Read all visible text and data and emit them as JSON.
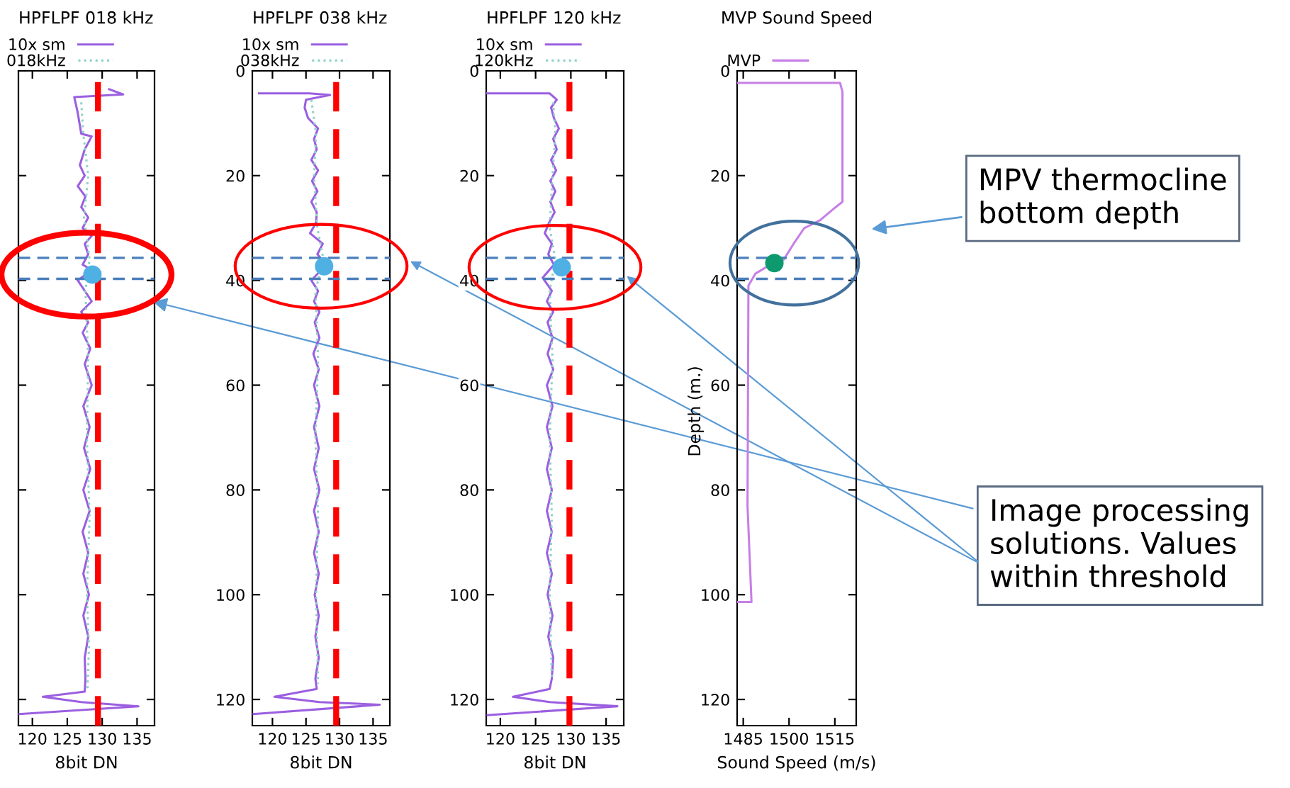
{
  "chart_data": [
    {
      "type": "line",
      "title": "HPFLPF 018 kHz",
      "xlabel": "8bit DN",
      "xlim": [
        118,
        137.5
      ],
      "xticks": [
        120,
        125,
        130,
        135
      ],
      "ylim": [
        125,
        0
      ],
      "yticks": [
        {
          "value": 0,
          "label": null
        },
        {
          "value": 20,
          "label": null
        },
        {
          "value": 40,
          "label": null
        },
        {
          "value": 60,
          "label": null
        },
        {
          "value": 80,
          "label": null
        },
        {
          "value": 100,
          "label": null
        },
        {
          "value": 120,
          "label": null
        }
      ],
      "tick_labels": "x",
      "legend": "top",
      "grid": false,
      "series": [
        {
          "name": "10x sm",
          "color": "#9b5fe0",
          "line_style": "solid",
          "x": [
            131,
            133,
            126,
            126.5,
            127,
            128.5,
            127.5,
            126.8,
            127.5,
            126.5,
            127.6,
            127,
            128,
            127.2,
            128.5,
            127.5,
            128,
            127.2,
            128.5,
            126.5,
            127.5,
            128.5,
            127,
            128,
            127.2,
            128.3,
            127.5,
            128.5,
            127.3,
            128.2,
            127.4,
            128.3,
            127.3,
            128.2,
            127.2,
            128,
            127.3,
            128.1,
            127.3,
            128,
            127.5,
            127.6,
            127.5,
            121.5,
            127,
            135.2,
            118
          ],
          "values": [
            3.5,
            4.5,
            5,
            8,
            12,
            12.5,
            15,
            18,
            20,
            22,
            24,
            26,
            28,
            30,
            31.5,
            33,
            35,
            37,
            38,
            40,
            42,
            44,
            46,
            48,
            50,
            53,
            56,
            60,
            64,
            68,
            72,
            76,
            80,
            84,
            88,
            92,
            96,
            100,
            104,
            108,
            112,
            116,
            118.5,
            119.5,
            120.5,
            121.3,
            122.8
          ]
        },
        {
          "name": "018kHz",
          "color": "#8fd3c8",
          "line_style": "dotted",
          "x": [
            127,
            127.3,
            128,
            127.4,
            128.2,
            127.6,
            128,
            127.8,
            128.2,
            127.8,
            128.1,
            127.9
          ],
          "values": [
            6,
            12,
            20,
            28,
            36,
            42,
            55,
            70,
            85,
            100,
            110,
            118
          ]
        },
        {
          "type": "scatter",
          "color": "#4fb0e4",
          "x": [
            128.6
          ],
          "values": [
            38.9
          ]
        }
      ],
      "ref_lines": [
        {
          "axis": "x",
          "value": 129.4,
          "color": "#ff0000",
          "line_style": "dashed"
        },
        {
          "axis": "y",
          "value": 35.7,
          "color": "#4a7ebb",
          "line_style": "dashed"
        },
        {
          "axis": "y",
          "value": 39.7,
          "color": "#4a7ebb",
          "line_style": "dashed"
        }
      ]
    },
    {
      "type": "line",
      "title": "HPFLPF 038 kHz",
      "xlabel": "8bit DN",
      "xlim": [
        117,
        137.5
      ],
      "xticks": [
        120,
        125,
        130,
        135
      ],
      "ylim": [
        125,
        0
      ],
      "yticks": [
        0,
        20,
        40,
        60,
        80,
        100,
        120
      ],
      "legend": "top",
      "grid": false,
      "series": [
        {
          "name": "10x sm",
          "color": "#9b5fe0",
          "line_style": "solid",
          "x": [
            118,
            125.5,
            128.6,
            125,
            124.8,
            125.3,
            126.8,
            126.2,
            126.6,
            125.8,
            126.8,
            125.9,
            126.7,
            125.8,
            126.6,
            126.5,
            125.6,
            127.5,
            126.7,
            128,
            125.8,
            126.8,
            126.2,
            127,
            126.3,
            127,
            126.1,
            126.9,
            126.2,
            127,
            126.2,
            126.9,
            126.2,
            127,
            126.2,
            126.9,
            126.2,
            126.9,
            126.3,
            126.9,
            126.4,
            126.9,
            126.4,
            126.6,
            120.3,
            127,
            136,
            117.2
          ],
          "values": [
            4.3,
            4.3,
            4.6,
            5.5,
            7,
            9,
            11,
            13,
            15,
            17,
            19,
            21,
            23,
            25,
            27,
            29,
            31,
            33,
            35,
            37,
            40,
            42,
            44,
            46,
            48,
            51,
            54,
            57,
            60,
            64,
            68,
            72,
            76,
            80,
            84,
            88,
            92,
            96,
            100,
            104,
            108,
            112,
            116,
            118,
            119.5,
            120.5,
            121,
            122.8
          ]
        },
        {
          "name": "038kHz",
          "color": "#8fd3c8",
          "line_style": "dotted",
          "x": [
            125.8,
            126.5,
            126.2,
            126.7,
            127.6,
            126.4,
            126.8,
            126.4,
            126.8,
            126.5,
            126.8
          ],
          "values": [
            5.5,
            12,
            20,
            30,
            36,
            42,
            55,
            70,
            85,
            100,
            117
          ]
        },
        {
          "type": "scatter",
          "color": "#4fb0e4",
          "x": [
            127.7
          ],
          "values": [
            37.3
          ]
        }
      ],
      "ref_lines": [
        {
          "axis": "x",
          "value": 129.5,
          "color": "#ff0000",
          "line_style": "dashed"
        },
        {
          "axis": "y",
          "value": 35.7,
          "color": "#4a7ebb",
          "line_style": "dashed"
        },
        {
          "axis": "y",
          "value": 39.7,
          "color": "#4a7ebb",
          "line_style": "dashed"
        }
      ]
    },
    {
      "type": "line",
      "title": "HPFLPF 120 kHz",
      "xlabel": "8bit DN",
      "xlim": [
        118,
        137.5
      ],
      "xticks": [
        120,
        125,
        130,
        135
      ],
      "ylim": [
        125,
        0
      ],
      "yticks": [
        0,
        20,
        40,
        60,
        80,
        100,
        120
      ],
      "legend": "top",
      "grid": false,
      "series": [
        {
          "name": "10x sm",
          "color": "#9b5fe0",
          "line_style": "solid",
          "x": [
            118,
            127,
            128,
            127.2,
            127.6,
            128.3,
            127.5,
            128,
            127.2,
            127.9,
            127.1,
            127.8,
            127.1,
            127.7,
            126.9,
            126.3,
            127.3,
            126.8,
            127.6,
            126,
            127.3,
            126.6,
            127.5,
            126.7,
            127.4,
            126.7,
            127.5,
            126.6,
            127.4,
            126.6,
            127.3,
            126.6,
            127.3,
            126.6,
            127.3,
            126.6,
            127.3,
            126.7,
            127.4,
            126.8,
            127.5,
            127.3,
            127,
            121.8,
            127,
            136.6,
            118.2
          ],
          "values": [
            4.3,
            4.3,
            5.5,
            7,
            9,
            11,
            13,
            15,
            17,
            19,
            21,
            23,
            25,
            27,
            29,
            31,
            33,
            35,
            37,
            39.5,
            42,
            44,
            46,
            48,
            51,
            54,
            57,
            60,
            64,
            68,
            72,
            76,
            80,
            84,
            88,
            92,
            96,
            100,
            104,
            108,
            112,
            116,
            118,
            119.5,
            120.5,
            121.3,
            123
          ]
        },
        {
          "name": "120kHz",
          "color": "#8fd3c8",
          "line_style": "dotted",
          "x": [
            127.5,
            127.8,
            127.4,
            127,
            127.8,
            127,
            127.4,
            127,
            127.3,
            127,
            127.3
          ],
          "values": [
            6,
            12,
            20,
            30,
            36,
            42,
            55,
            70,
            85,
            100,
            116
          ]
        },
        {
          "type": "scatter",
          "color": "#4fb0e4",
          "x": [
            128.7
          ],
          "values": [
            37.5
          ]
        }
      ],
      "ref_lines": [
        {
          "axis": "x",
          "value": 129.8,
          "color": "#ff0000",
          "line_style": "dashed"
        },
        {
          "axis": "y",
          "value": 35.7,
          "color": "#4a7ebb",
          "line_style": "dashed"
        },
        {
          "axis": "y",
          "value": 39.7,
          "color": "#4a7ebb",
          "line_style": "dashed"
        }
      ]
    },
    {
      "type": "line",
      "title": "MVP Sound Speed",
      "xlabel": "Sound Speed (m/s)",
      "ylabel": "Depth (m.)",
      "xlim": [
        1483,
        1522
      ],
      "xticks": [
        1485,
        1500,
        1515
      ],
      "ylim": [
        125,
        0
      ],
      "yticks": [
        0,
        20,
        40,
        60,
        80,
        100,
        120
      ],
      "legend": "top",
      "grid": false,
      "series": [
        {
          "name": "MVP",
          "color": "#c77fe6",
          "line_style": "solid",
          "x": [
            1483,
            1516.7,
            1517.5,
            1517.5,
            1515.3,
            1510.2,
            1505,
            1501.5,
            1498.3,
            1493,
            1489,
            1486.7,
            1486.4,
            1487.7,
            1483
          ],
          "values": [
            2.3,
            2.3,
            4,
            25,
            26,
            28.5,
            30,
            33,
            36,
            37.3,
            38.7,
            41,
            83,
            101.4,
            101.4
          ]
        },
        {
          "type": "scatter",
          "color": "#0e9a6e",
          "x": [
            1495.2
          ],
          "values": [
            36.7
          ]
        }
      ],
      "ref_lines": [
        {
          "axis": "y",
          "value": 35.7,
          "color": "#4a7ebb",
          "line_style": "dashed"
        },
        {
          "axis": "y",
          "value": 39.7,
          "color": "#4a7ebb",
          "line_style": "dashed"
        }
      ],
      "annotations": [
        "MPV thermocline bottom depth",
        "Image processing solutions. Values within threshold"
      ]
    }
  ]
}
